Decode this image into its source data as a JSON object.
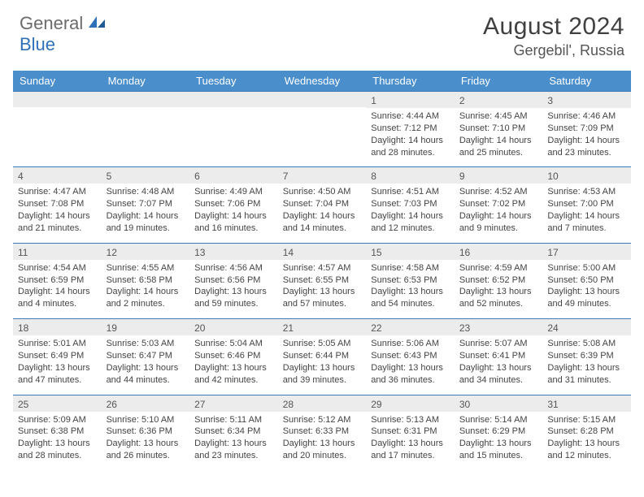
{
  "brand": {
    "word1": "General",
    "word2": "Blue",
    "blue_hex": "#2f71b8",
    "gray_hex": "#6b6b6b"
  },
  "title": "August 2024",
  "location": "Gergebil', Russia",
  "colors": {
    "header_bg": "#4a8ecc",
    "header_bg_alt": "#3f82c2",
    "row_divider": "#3b7ab5",
    "daynum_bg": "#ececec",
    "text": "#333333",
    "title_text": "#404040"
  },
  "dow": [
    "Sunday",
    "Monday",
    "Tuesday",
    "Wednesday",
    "Thursday",
    "Friday",
    "Saturday"
  ],
  "weeks": [
    [
      null,
      null,
      null,
      null,
      {
        "n": "1",
        "sr": "4:44 AM",
        "ss": "7:12 PM",
        "dl": "14 hours and 28 minutes."
      },
      {
        "n": "2",
        "sr": "4:45 AM",
        "ss": "7:10 PM",
        "dl": "14 hours and 25 minutes."
      },
      {
        "n": "3",
        "sr": "4:46 AM",
        "ss": "7:09 PM",
        "dl": "14 hours and 23 minutes."
      }
    ],
    [
      {
        "n": "4",
        "sr": "4:47 AM",
        "ss": "7:08 PM",
        "dl": "14 hours and 21 minutes."
      },
      {
        "n": "5",
        "sr": "4:48 AM",
        "ss": "7:07 PM",
        "dl": "14 hours and 19 minutes."
      },
      {
        "n": "6",
        "sr": "4:49 AM",
        "ss": "7:06 PM",
        "dl": "14 hours and 16 minutes."
      },
      {
        "n": "7",
        "sr": "4:50 AM",
        "ss": "7:04 PM",
        "dl": "14 hours and 14 minutes."
      },
      {
        "n": "8",
        "sr": "4:51 AM",
        "ss": "7:03 PM",
        "dl": "14 hours and 12 minutes."
      },
      {
        "n": "9",
        "sr": "4:52 AM",
        "ss": "7:02 PM",
        "dl": "14 hours and 9 minutes."
      },
      {
        "n": "10",
        "sr": "4:53 AM",
        "ss": "7:00 PM",
        "dl": "14 hours and 7 minutes."
      }
    ],
    [
      {
        "n": "11",
        "sr": "4:54 AM",
        "ss": "6:59 PM",
        "dl": "14 hours and 4 minutes."
      },
      {
        "n": "12",
        "sr": "4:55 AM",
        "ss": "6:58 PM",
        "dl": "14 hours and 2 minutes."
      },
      {
        "n": "13",
        "sr": "4:56 AM",
        "ss": "6:56 PM",
        "dl": "13 hours and 59 minutes."
      },
      {
        "n": "14",
        "sr": "4:57 AM",
        "ss": "6:55 PM",
        "dl": "13 hours and 57 minutes."
      },
      {
        "n": "15",
        "sr": "4:58 AM",
        "ss": "6:53 PM",
        "dl": "13 hours and 54 minutes."
      },
      {
        "n": "16",
        "sr": "4:59 AM",
        "ss": "6:52 PM",
        "dl": "13 hours and 52 minutes."
      },
      {
        "n": "17",
        "sr": "5:00 AM",
        "ss": "6:50 PM",
        "dl": "13 hours and 49 minutes."
      }
    ],
    [
      {
        "n": "18",
        "sr": "5:01 AM",
        "ss": "6:49 PM",
        "dl": "13 hours and 47 minutes."
      },
      {
        "n": "19",
        "sr": "5:03 AM",
        "ss": "6:47 PM",
        "dl": "13 hours and 44 minutes."
      },
      {
        "n": "20",
        "sr": "5:04 AM",
        "ss": "6:46 PM",
        "dl": "13 hours and 42 minutes."
      },
      {
        "n": "21",
        "sr": "5:05 AM",
        "ss": "6:44 PM",
        "dl": "13 hours and 39 minutes."
      },
      {
        "n": "22",
        "sr": "5:06 AM",
        "ss": "6:43 PM",
        "dl": "13 hours and 36 minutes."
      },
      {
        "n": "23",
        "sr": "5:07 AM",
        "ss": "6:41 PM",
        "dl": "13 hours and 34 minutes."
      },
      {
        "n": "24",
        "sr": "5:08 AM",
        "ss": "6:39 PM",
        "dl": "13 hours and 31 minutes."
      }
    ],
    [
      {
        "n": "25",
        "sr": "5:09 AM",
        "ss": "6:38 PM",
        "dl": "13 hours and 28 minutes."
      },
      {
        "n": "26",
        "sr": "5:10 AM",
        "ss": "6:36 PM",
        "dl": "13 hours and 26 minutes."
      },
      {
        "n": "27",
        "sr": "5:11 AM",
        "ss": "6:34 PM",
        "dl": "13 hours and 23 minutes."
      },
      {
        "n": "28",
        "sr": "5:12 AM",
        "ss": "6:33 PM",
        "dl": "13 hours and 20 minutes."
      },
      {
        "n": "29",
        "sr": "5:13 AM",
        "ss": "6:31 PM",
        "dl": "13 hours and 17 minutes."
      },
      {
        "n": "30",
        "sr": "5:14 AM",
        "ss": "6:29 PM",
        "dl": "13 hours and 15 minutes."
      },
      {
        "n": "31",
        "sr": "5:15 AM",
        "ss": "6:28 PM",
        "dl": "13 hours and 12 minutes."
      }
    ]
  ],
  "labels": {
    "sunrise": "Sunrise: ",
    "sunset": "Sunset: ",
    "daylight": "Daylight: "
  }
}
